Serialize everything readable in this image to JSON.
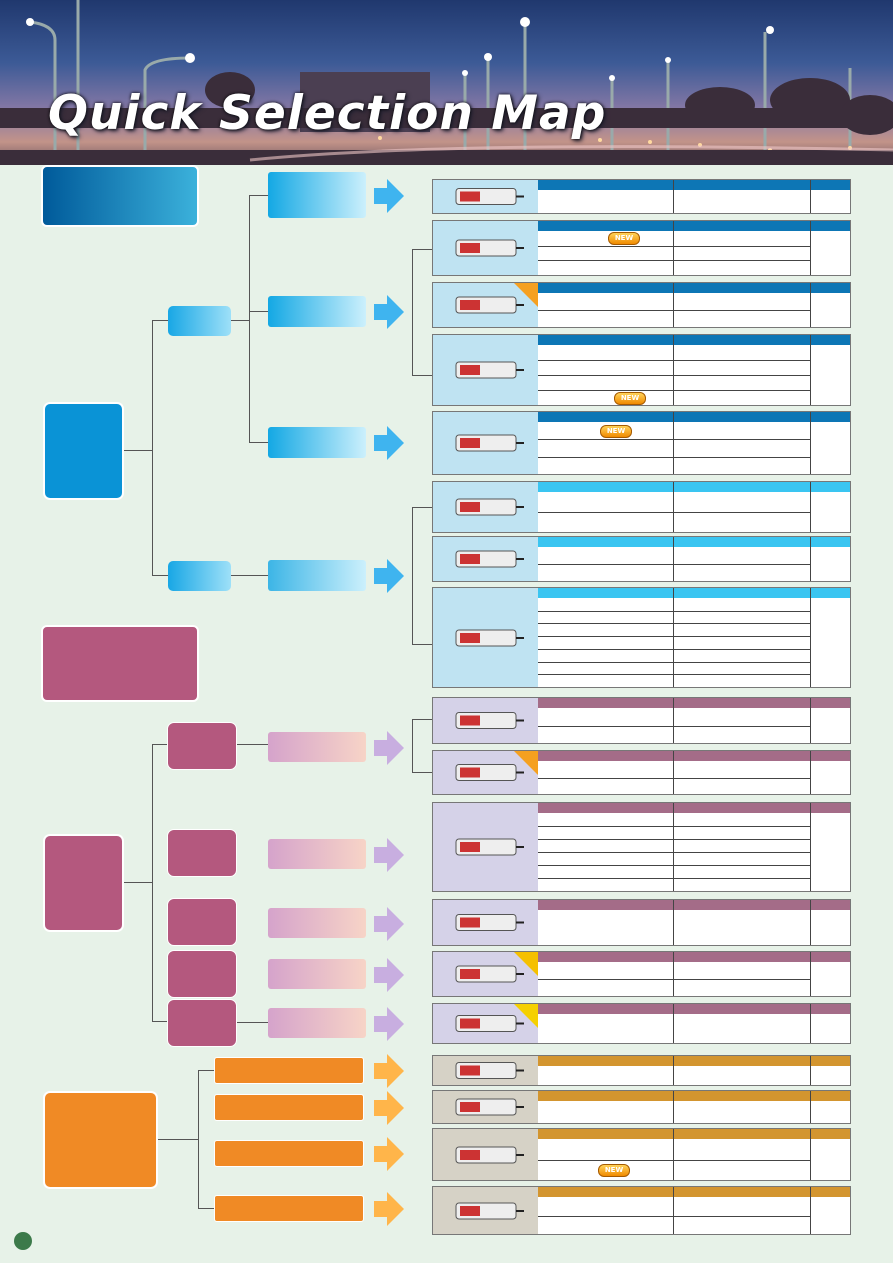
{
  "header": {
    "title": "Quick Selection Map"
  },
  "badges": {
    "new": "NEW"
  },
  "colors": {
    "blue": "#0a93d6",
    "blue_light": "#37c0ef",
    "purple": "#a35b82",
    "purple_light": "#e7c0c9",
    "orange": "#f08a25",
    "prod_bg_blue": "#bfe3f2",
    "prod_bg_purple": "#d5d2e8",
    "prod_bg_orange": "#d6d2c6",
    "bar_blue": "#0d76b5",
    "bar_cyan": "#3ac5f1",
    "bar_purple": "#a46c88",
    "bar_orange": "#d3952f"
  },
  "icons": [
    "street-light-icon",
    "led-driver-icon",
    "page-number-dot"
  ]
}
